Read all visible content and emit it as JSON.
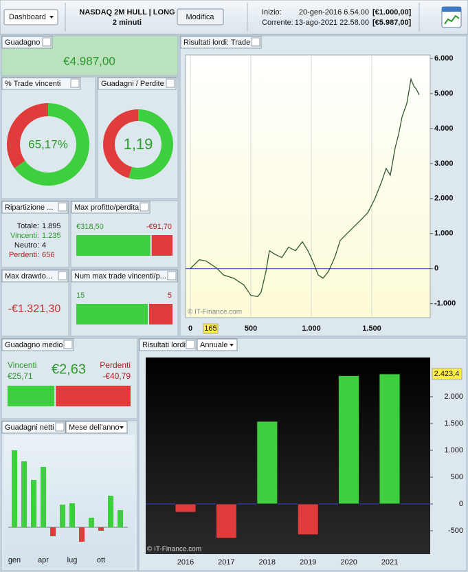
{
  "header": {
    "dashboard_button": "Dashboard",
    "title": "NASDAQ 2M HULL | LONG",
    "subtitle": "2 minuti",
    "edit_button": "Modifica",
    "start_label": "Inizio:",
    "start_date": "20-gen-2016 6.54.00",
    "start_equity": "[€1.000,00]",
    "current_label": "Corrente:",
    "current_date": "13-ago-2021 22.58.00",
    "current_equity": "[€5.987,00]"
  },
  "panels": {
    "profit": {
      "title": "Guadagno",
      "value": {
        "value": 4987,
        "label": "€4.987,00"
      }
    },
    "win_rate": {
      "title": "% Trade vincenti",
      "value": {
        "value": 65.17,
        "label": "65,17%"
      }
    },
    "profit_factor": {
      "title": "Guadagni / Perdite",
      "value": {
        "value": 1.19,
        "label": "1,19"
      }
    },
    "breakdown": {
      "title": "Ripartizione ...",
      "rows": [
        {
          "label": "Totale:",
          "value": {
            "value": 1895,
            "label": "1.895"
          }
        },
        {
          "label": "Vincenti:",
          "value": {
            "value": 1235,
            "label": "1.235"
          }
        },
        {
          "label": "Neutro:",
          "value": {
            "value": 4,
            "label": "4"
          }
        },
        {
          "label": "Perdenti:",
          "value": {
            "value": 656,
            "label": "656"
          }
        }
      ]
    },
    "max_trade": {
      "title": "Max profitto/perdita",
      "profit": {
        "value": 318.5,
        "label": "€318,50"
      },
      "loss": {
        "value": -91.7,
        "label": "-€91,70"
      }
    },
    "max_drawdown": {
      "title": "Max drawdo...",
      "value": {
        "value": -1321.3,
        "label": "-€1.321,30"
      }
    },
    "max_streak": {
      "title": "Num max trade vincenti/p...",
      "wins": 15,
      "losses": 5
    },
    "avg_trade": {
      "title": "Guadagno medio",
      "value": {
        "value": 2.63,
        "label": "€2,63"
      },
      "win_label": "Vincenti",
      "win": {
        "value": 25.71,
        "label": "€25,71"
      },
      "loss_label": "Perdenti",
      "loss": {
        "value": -40.79,
        "label": "-€40,79"
      }
    },
    "color_positive": "#3ecf3e",
    "color_negative": "#e03c3c"
  },
  "chart_data": [
    {
      "type": "line",
      "title": "Risultati lordi: Trade",
      "source": "© IT-Finance.com",
      "cursor_label": "165",
      "color": "#2e5a2e",
      "x": [
        0,
        74,
        130,
        216,
        273,
        358,
        443,
        500,
        557,
        585,
        625,
        653,
        699,
        756,
        812,
        869,
        926,
        972,
        1011,
        1057,
        1097,
        1142,
        1193,
        1239,
        1295,
        1352,
        1409,
        1466,
        1523,
        1580,
        1619,
        1653,
        1693,
        1722,
        1750,
        1790,
        1824,
        1847,
        1869,
        1892
      ],
      "values": [
        0,
        255,
        215,
        20,
        -180,
        -275,
        -470,
        -765,
        -800,
        -670,
        -80,
        510,
        410,
        315,
        610,
        510,
        765,
        510,
        215,
        -180,
        -275,
        -80,
        315,
        805,
        1000,
        1195,
        1390,
        1590,
        1980,
        2470,
        2860,
        2665,
        3450,
        3840,
        4330,
        4720,
        5410,
        5215,
        5120,
        4960
      ],
      "xlim": [
        -40,
        1983
      ],
      "xticks": [
        0,
        500,
        {
          "value": 1000,
          "label": "1.000"
        },
        {
          "value": 1500,
          "label": "1.500"
        }
      ],
      "ylim": [
        -1400,
        6100
      ],
      "yticks": [
        {
          "value": -1000,
          "label": "-1.000"
        },
        0,
        {
          "value": 1000,
          "label": "1.000"
        },
        {
          "value": 2000,
          "label": "2.000"
        },
        {
          "value": 3000,
          "label": "3.000"
        },
        {
          "value": 4000,
          "label": "4.000"
        },
        {
          "value": 5000,
          "label": "5.000"
        },
        {
          "value": 6000,
          "label": "6.000"
        }
      ],
      "grid": true
    },
    {
      "type": "bar",
      "title": "Guadagni netti",
      "selector": "Mese dell'anno",
      "categories": [
        "gen",
        null,
        null,
        "apr",
        null,
        null,
        "lug",
        null,
        null,
        "ott",
        null,
        null
      ],
      "values": [
        112,
        96,
        69,
        88,
        -13,
        33,
        35,
        -21,
        14,
        -5,
        46,
        25
      ],
      "ylim": [
        -35,
        125
      ],
      "color_positive": "#3ecf3e",
      "color_negative": "#e03c3c"
    },
    {
      "type": "bar",
      "title": "Risultati lordi",
      "selector": "Annuale",
      "source": "© IT-Finance.com",
      "categories": [
        "2016",
        "2017",
        "2018",
        "2019",
        "2020",
        "2021"
      ],
      "values": [
        -155,
        -640,
        1540,
        -575,
        2390,
        2423.4
      ],
      "value_labels": [
        null,
        null,
        null,
        null,
        null,
        "2.423,4"
      ],
      "ylim": [
        -935,
        2730
      ],
      "yticks": [
        -500,
        0,
        500,
        {
          "value": 1000,
          "label": "1.000"
        },
        {
          "value": 1500,
          "label": "1.500"
        },
        {
          "value": 2000,
          "label": "2.000"
        }
      ],
      "color_positive": "#3ecf3e",
      "color_negative": "#e03c3c"
    }
  ]
}
